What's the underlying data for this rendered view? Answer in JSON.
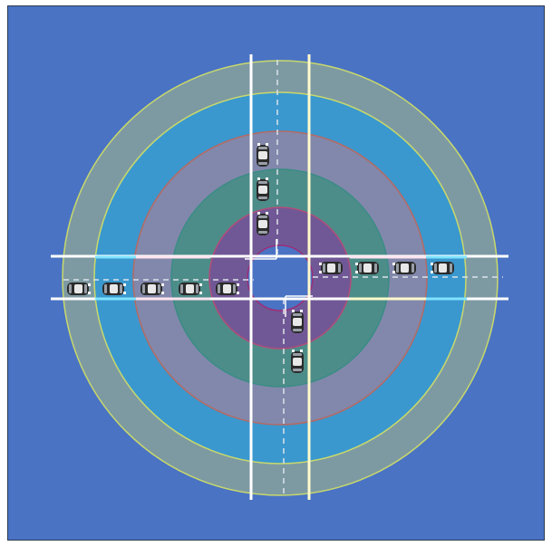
{
  "scene": {
    "background_color": "#4a73c4",
    "rings": [
      {
        "name": "outer-ring",
        "fill": "#7d9aa3",
        "stroke": "#c9d96b"
      },
      {
        "name": "ring-2",
        "fill": "#3a98cf",
        "stroke": "#c9d96b"
      },
      {
        "name": "ring-3",
        "fill": "#8288ab",
        "stroke": "#b46a64"
      },
      {
        "name": "ring-4",
        "fill": "#4d8d89",
        "stroke": "#3a8c86"
      },
      {
        "name": "ring-5",
        "fill": "#705896",
        "stroke": "#b24c7a"
      },
      {
        "name": "center-island",
        "fill": "#4a73c4",
        "stroke": "#9a2f78"
      }
    ],
    "road_line_colors": [
      "#ffffff",
      "#7fe3ff",
      "#ffe3ee",
      "#fffacc"
    ],
    "car_color": "#2b2b2b",
    "cars": {
      "westbound_row": 5,
      "eastbound_row": 4,
      "north_column": 3,
      "south_column": 2
    }
  }
}
